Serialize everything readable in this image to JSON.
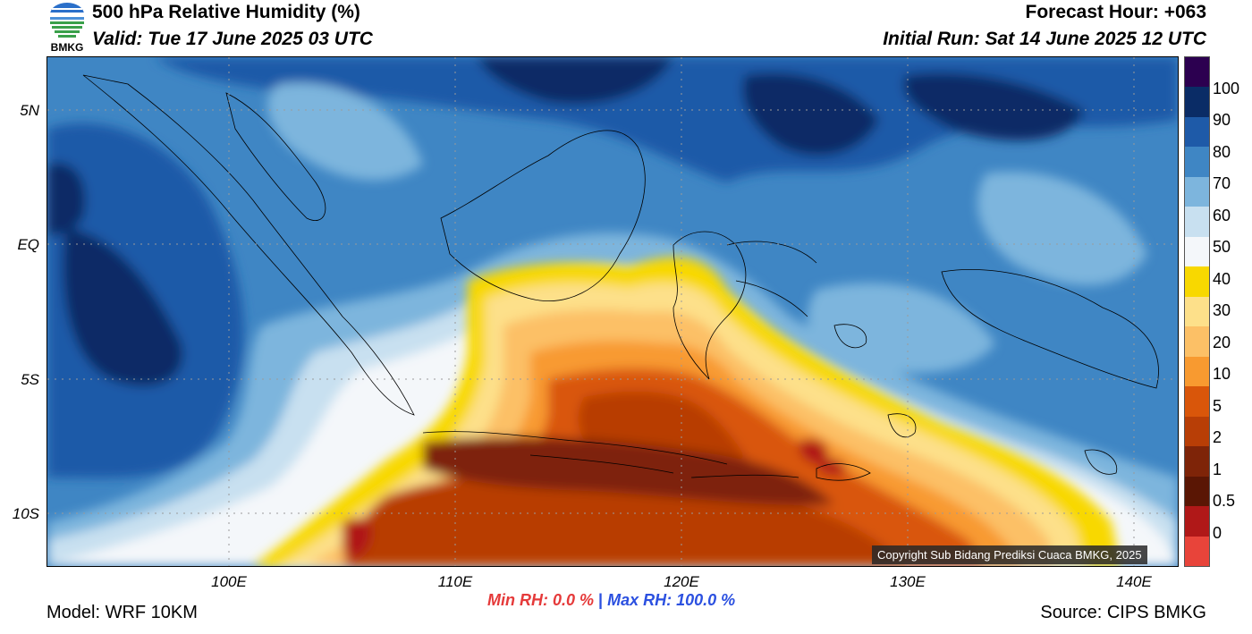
{
  "header": {
    "title": "500 hPa Relative Humidity (%)",
    "valid": "Valid: Tue 17 June 2025 03 UTC",
    "forecast_hour": "Forecast Hour: +063",
    "initial_run": "Initial Run: Sat 14 June 2025 12 UTC",
    "logo_text": "BMKG"
  },
  "map": {
    "lat_labels": [
      "5N",
      "EQ",
      "5S",
      "10S"
    ],
    "lon_labels": [
      "100E",
      "110E",
      "120E",
      "130E",
      "140E"
    ],
    "copyright": "Copyright Sub Bidang Prediksi Cuaca BMKG, 2025"
  },
  "colorbar": {
    "segments": [
      "#2c0050",
      "#0a2c66",
      "#1e5aa8",
      "#3f86c4",
      "#7db5dd",
      "#c8e0f0",
      "#f4f7fa",
      "#f8d800",
      "#fde08a",
      "#fcc066",
      "#f89a30",
      "#d9560a",
      "#b83e06",
      "#7e2408",
      "#5a1604",
      "#b01818",
      "#e8443a"
    ],
    "labels": [
      "100",
      "90",
      "80",
      "70",
      "60",
      "50",
      "40",
      "30",
      "20",
      "10",
      "5",
      "2",
      "1",
      "0.5",
      "0"
    ]
  },
  "stats": {
    "min": "Min RH:   0.0 %",
    "separator": "|",
    "max": "Max RH: 100.0 %"
  },
  "footer": {
    "model": "Model: WRF 10KM",
    "source": "Source: CIPS BMKG"
  }
}
